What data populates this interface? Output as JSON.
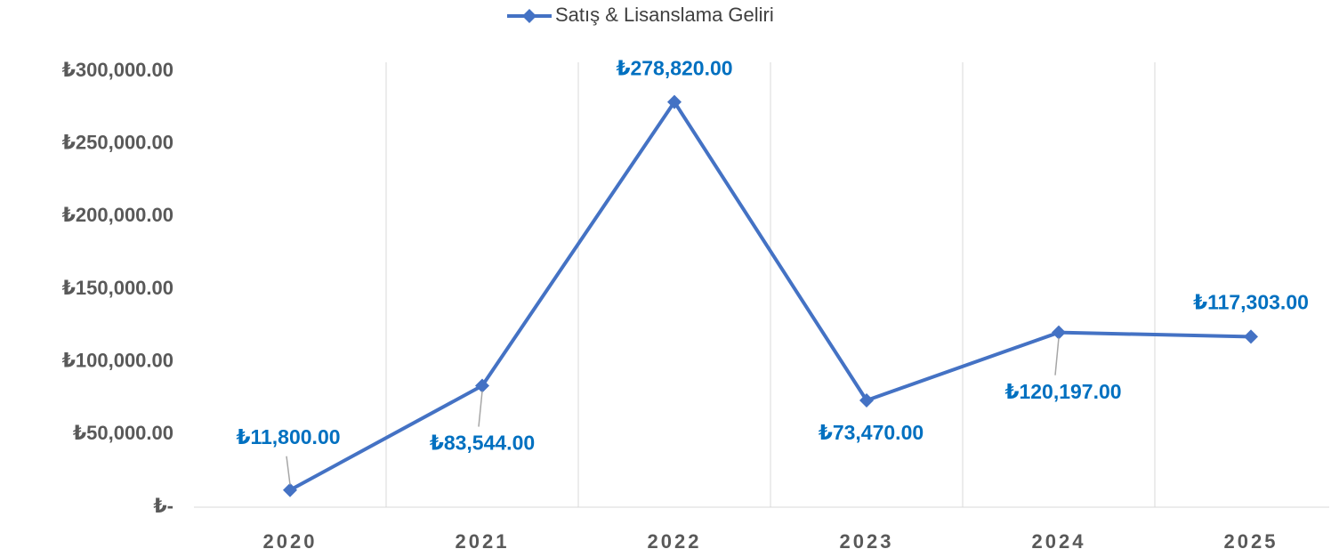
{
  "chart_data": {
    "type": "line",
    "categories": [
      "2020",
      "2021",
      "2022",
      "2023",
      "2024",
      "2025"
    ],
    "series": [
      {
        "name": "Satış & Lisanslama Geliri",
        "color": "#4472c4",
        "values": [
          11800,
          83544,
          278820,
          73470,
          120197,
          117303
        ],
        "value_labels": [
          "₺11,800.00",
          "₺83,544.00",
          "₺278,820.00",
          "₺73,470.00",
          "₺120,197.00",
          "₺117,303.00"
        ]
      }
    ],
    "ylim": [
      0,
      300000
    ],
    "yticks": [
      {
        "value": 0,
        "label": "₺-"
      },
      {
        "value": 50000,
        "label": "₺50,000.00"
      },
      {
        "value": 100000,
        "label": "₺100,000.00"
      },
      {
        "value": 150000,
        "label": "₺150,000.00"
      },
      {
        "value": 200000,
        "label": "₺200,000.00"
      },
      {
        "value": 250000,
        "label": "₺250,000.00"
      },
      {
        "value": 300000,
        "label": "₺300,000.00"
      }
    ],
    "legend": "top"
  }
}
